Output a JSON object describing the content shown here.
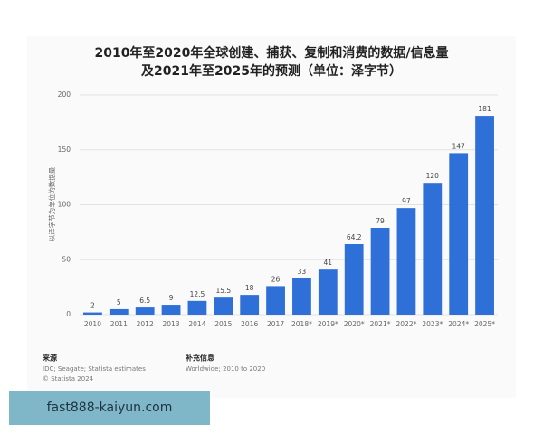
{
  "chart_data": {
    "type": "bar",
    "title": "2010年至2020年全球创建、捕获、复制和消费的数据/信息量",
    "subtitle": "及2021年至2025年的预测（单位：泽字节）",
    "y_label": "以泽字节为单位的数据量",
    "categories": [
      "2010",
      "2011",
      "2012",
      "2013",
      "2014",
      "2015",
      "2016",
      "2017",
      "2018*",
      "2019*",
      "2020*",
      "2021*",
      "2022*",
      "2023*",
      "2024*",
      "2025*"
    ],
    "values": [
      2,
      5,
      6.5,
      9,
      12.5,
      15.5,
      18,
      26,
      33,
      41,
      64.2,
      79,
      97,
      120,
      147,
      181
    ],
    "color": "#2f6fd8",
    "ylim": [
      0,
      200
    ],
    "yticks": [
      0,
      50,
      100,
      150,
      200
    ],
    "grid": true
  },
  "footer": {
    "source_label": "来源",
    "source": "IDC; Seagate; Statista estimates",
    "copyright": "© Statista 2024",
    "info_label": "补充信息",
    "info": "Worldwide; 2010 to 2020"
  },
  "banner": "fast888-kaiyun.com"
}
